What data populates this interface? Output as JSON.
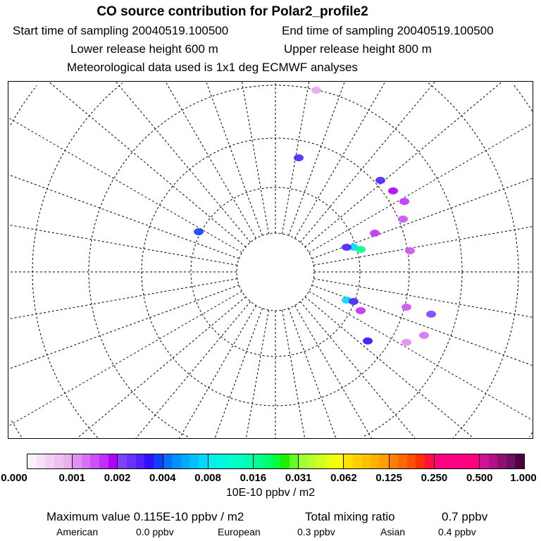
{
  "header": {
    "title": "CO  source contribution for Polar2_profile2",
    "start_label": "Start time of sampling 20040519.100500",
    "end_label": "End time of sampling 20040519.100500",
    "lower_label": "Lower release height  600 m",
    "upper_label": "Upper release height  800 m",
    "met_label": "Meteorological data used is 1x1 deg ECMWF analyses"
  },
  "colorbar": {
    "ticks": [
      "0.000",
      "0.001",
      "0.002",
      "0.004",
      "0.008",
      "0.016",
      "0.031",
      "0.062",
      "0.125",
      "0.250",
      "0.500",
      "1.000"
    ],
    "unit": "10E-10 ppbv / m2",
    "colors": [
      [
        "#fdf0fd",
        "#f8e0f8",
        "#f4d0f4",
        "#f0c0f0",
        "#ebb0eb"
      ],
      [
        "#e090f0",
        "#d670f5",
        "#cc50f8",
        "#c030fa",
        "#b000ff"
      ],
      [
        "#8040ff",
        "#6a30ff",
        "#5020ff",
        "#3010ff",
        "#1040ff"
      ],
      [
        "#0070ff",
        "#0090ff",
        "#00a8ff",
        "#00c0ff",
        "#00d8ff"
      ],
      [
        "#00f0f0",
        "#00f8e0",
        "#00ffd0",
        "#00ffc0",
        "#00ffb0"
      ],
      [
        "#00ff90",
        "#00ff70",
        "#00ff40",
        "#20f000",
        "#60ff20"
      ],
      [
        "#a0ff30",
        "#b8ff30",
        "#d0ff20",
        "#e8ff10",
        "#f8ff00"
      ],
      [
        "#ffe000",
        "#ffd000",
        "#ffc000",
        "#ffb000",
        "#ffa000"
      ],
      [
        "#ff8000",
        "#ff6800",
        "#ff5000",
        "#ff3000",
        "#ff1040"
      ],
      [
        "#ff0080",
        "#ff0080",
        "#ff0080",
        "#ff0080",
        "#ff0080"
      ],
      [
        "#d0109a",
        "#b0108a",
        "#901070",
        "#701060",
        "#500040"
      ]
    ]
  },
  "footer": {
    "max_label": "Maximum value  0.115E-10 ppbv / m2",
    "total_label": "Total mixing ratio",
    "total_value": "0.7 ppbv",
    "regions": [
      {
        "name": "American",
        "value": "0.0 ppbv"
      },
      {
        "name": "European",
        "value": "0.3 ppbv"
      },
      {
        "name": "Asian",
        "value": "0.4 ppbv"
      }
    ]
  }
}
